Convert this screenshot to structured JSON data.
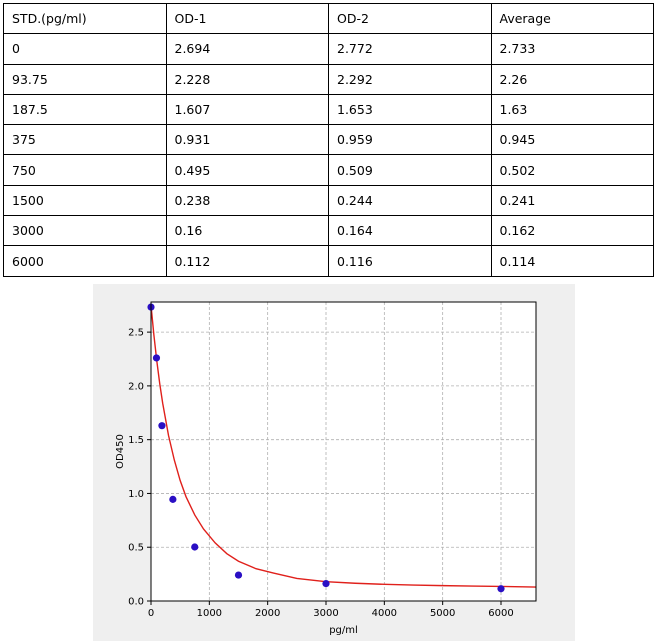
{
  "table": {
    "headers": [
      "STD.(pg/ml)",
      "OD-1",
      "OD-2",
      "Average"
    ],
    "rows": [
      [
        "0",
        "2.694",
        "2.772",
        "2.733"
      ],
      [
        "93.75",
        "2.228",
        "2.292",
        "2.26"
      ],
      [
        "187.5",
        "1.607",
        "1.653",
        "1.63"
      ],
      [
        "375",
        "0.931",
        "0.959",
        "0.945"
      ],
      [
        "750",
        "0.495",
        "0.509",
        "0.502"
      ],
      [
        "1500",
        "0.238",
        "0.244",
        "0.241"
      ],
      [
        "3000",
        "0.16",
        "0.164",
        "0.162"
      ],
      [
        "6000",
        "0.112",
        "0.116",
        "0.114"
      ]
    ]
  },
  "chart_data": {
    "type": "scatter",
    "title": "",
    "xlabel": "pg/ml",
    "ylabel": "OD450",
    "xlim": [
      0,
      6600
    ],
    "ylim": [
      0,
      2.78
    ],
    "xticks": [
      0,
      1000,
      2000,
      3000,
      4000,
      5000,
      6000
    ],
    "yticks": [
      0.0,
      0.5,
      1.0,
      1.5,
      2.0,
      2.5
    ],
    "xtick_labels": [
      "0",
      "1000",
      "2000",
      "3000",
      "4000",
      "5000",
      "6000"
    ],
    "ytick_labels": [
      "0.0",
      "0.5",
      "1.0",
      "1.5",
      "2.0",
      "2.5"
    ],
    "grid": true,
    "points": {
      "x": [
        0,
        93.75,
        187.5,
        375,
        750,
        1500,
        3000,
        6000
      ],
      "y": [
        2.733,
        2.26,
        1.63,
        0.945,
        0.502,
        0.241,
        0.162,
        0.114
      ],
      "color": "#2a0fc4"
    },
    "fit_curve": {
      "x": [
        0,
        50,
        100,
        150,
        200,
        300,
        400,
        500,
        600,
        750,
        900,
        1100,
        1300,
        1500,
        1800,
        2100,
        2500,
        3000,
        3500,
        4000,
        4500,
        5000,
        5500,
        6000,
        6600
      ],
      "y": [
        2.75,
        2.47,
        2.23,
        2.02,
        1.84,
        1.54,
        1.31,
        1.12,
        0.97,
        0.8,
        0.67,
        0.54,
        0.44,
        0.37,
        0.3,
        0.26,
        0.21,
        0.18,
        0.165,
        0.155,
        0.148,
        0.143,
        0.139,
        0.135,
        0.13
      ],
      "color": "#e0201b"
    }
  }
}
